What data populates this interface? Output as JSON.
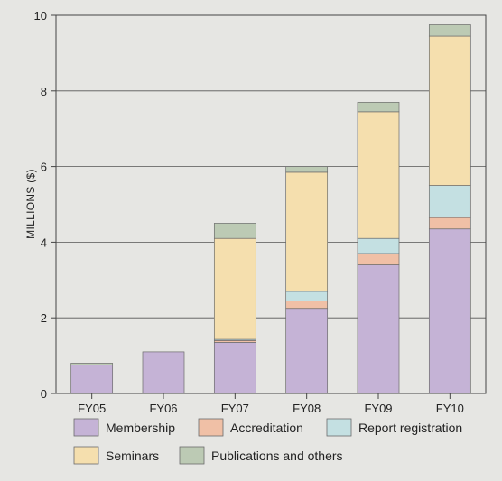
{
  "chart_data": {
    "type": "bar",
    "stacked": true,
    "categories": [
      "FY05",
      "FY06",
      "FY07",
      "FY08",
      "FY09",
      "FY10"
    ],
    "ylabel": "MILLIONS ($)",
    "ylim": [
      0,
      10
    ],
    "yticks": [
      0,
      2,
      4,
      6,
      8,
      10
    ],
    "grid": true,
    "legend_position": "bottom",
    "series": [
      {
        "name": "Membership",
        "color": "#c5b3d6",
        "values": [
          0.75,
          1.1,
          1.35,
          2.25,
          3.4,
          4.35
        ]
      },
      {
        "name": "Accreditation",
        "color": "#f0c0a6",
        "values": [
          0.0,
          0.0,
          0.05,
          0.2,
          0.3,
          0.3
        ]
      },
      {
        "name": "Report registration",
        "color": "#c4e0e2",
        "values": [
          0.0,
          0.0,
          0.03,
          0.25,
          0.4,
          0.85
        ]
      },
      {
        "name": "Seminars",
        "color": "#f5dfae",
        "values": [
          0.0,
          0.0,
          2.67,
          3.15,
          3.35,
          3.95
        ]
      },
      {
        "name": "Publications and others",
        "color": "#bccab4",
        "values": [
          0.05,
          0.0,
          0.4,
          0.15,
          0.25,
          0.3
        ]
      }
    ]
  }
}
